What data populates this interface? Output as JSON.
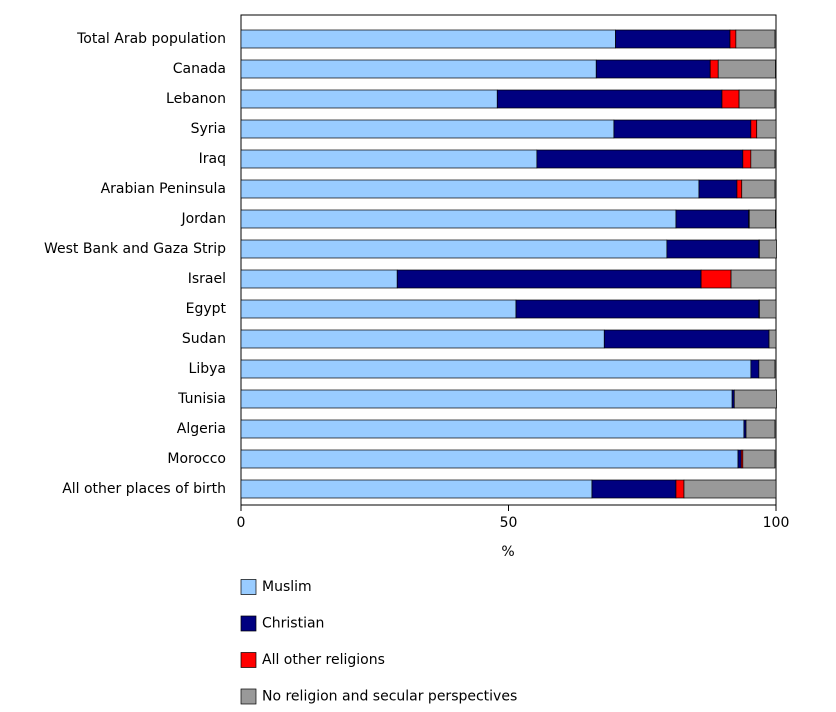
{
  "chart_data": {
    "type": "stacked-bar-horizontal",
    "x_label": "%",
    "categories": [
      "Total Arab population",
      "Canada",
      "Lebanon",
      "Syria",
      "Iraq",
      "Arabian Peninsula",
      "Jordan",
      "West Bank and Gaza Strip",
      "Israel",
      "Egypt",
      "Sudan",
      "Libya",
      "Tunisia",
      "Algeria",
      "Morocco",
      "All other places of birth"
    ],
    "series": [
      {
        "name": "Muslim",
        "color": "#99ccff",
        "values": [
          70,
          66.4,
          47.9,
          69.7,
          55.3,
          85.6,
          81.3,
          79.6,
          29.2,
          51.4,
          67.9,
          95.3,
          91.8,
          94,
          92.9,
          65.6
        ]
      },
      {
        "name": "Christian",
        "color": "#000080",
        "values": [
          21.4,
          21.3,
          42,
          25.6,
          38.5,
          7.1,
          13.6,
          17.2,
          56.8,
          45.4,
          30.8,
          1.5,
          0.4,
          0.4,
          0.6,
          15.7
        ]
      },
      {
        "name": "All other religions",
        "color": "#ff0000",
        "values": [
          1.1,
          1.5,
          3.2,
          1.1,
          1.5,
          0.9,
          0.1,
          0.1,
          5.6,
          0.1,
          0,
          0,
          0,
          0,
          0.3,
          1.5
        ]
      },
      {
        "name": "No religion and secular perspectives",
        "color": "#999999",
        "values": [
          7.3,
          10.7,
          6.7,
          3.6,
          4.5,
          6.2,
          4.9,
          3.2,
          8.4,
          3.1,
          1.3,
          3,
          7.9,
          5.4,
          6,
          17.2
        ]
      }
    ],
    "xlim": [
      0,
      100
    ],
    "xticks": [
      0,
      50,
      100
    ],
    "grid": false
  }
}
